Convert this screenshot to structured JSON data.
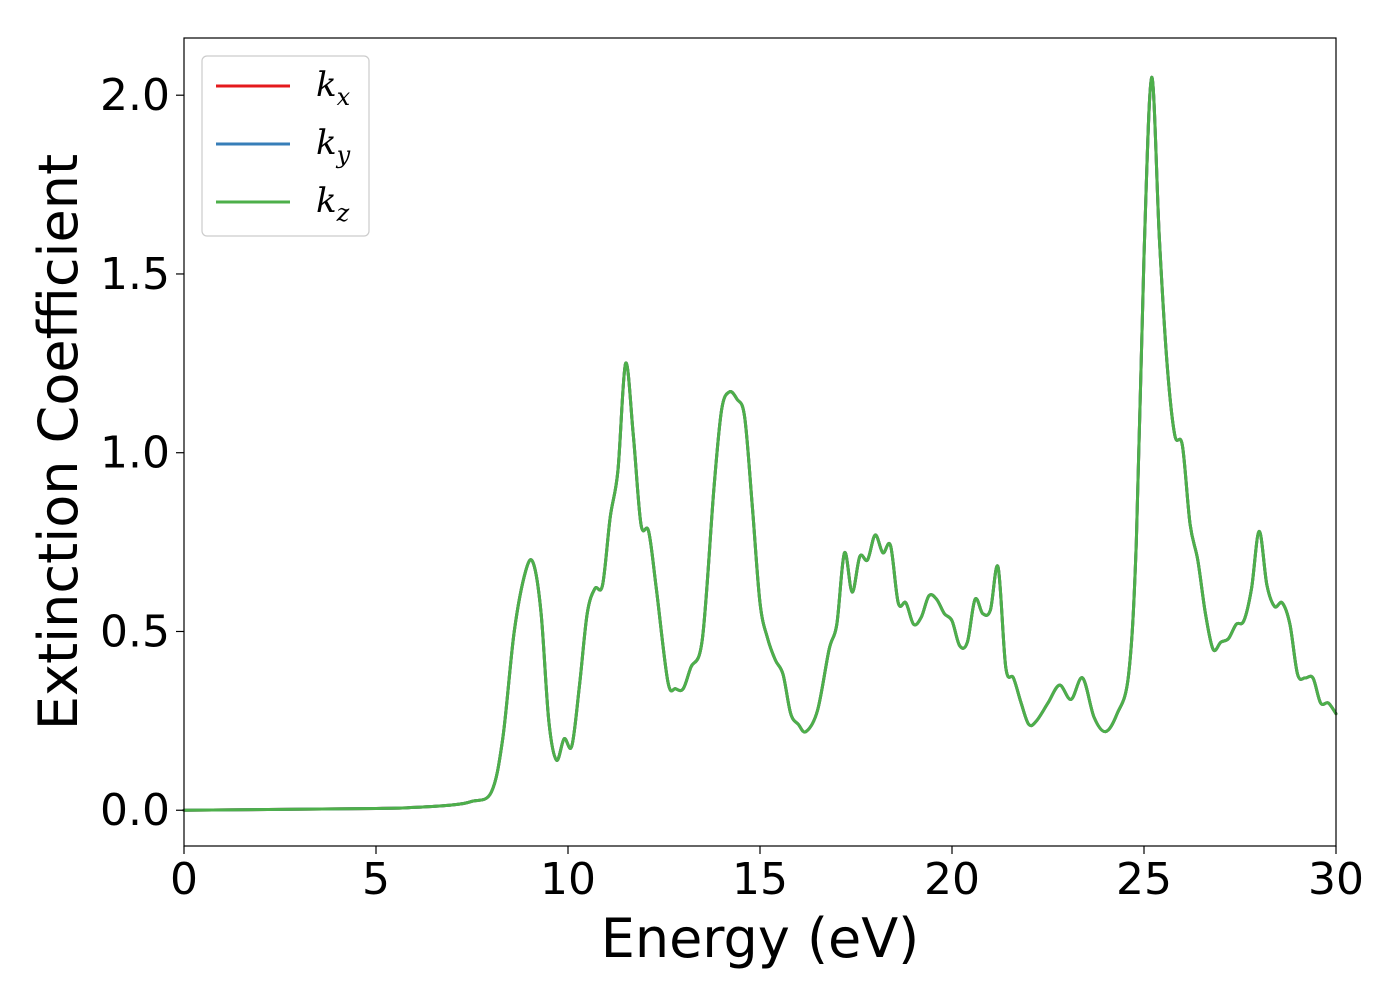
{
  "chart_data": {
    "type": "line",
    "xlabel": "Energy (eV)",
    "ylabel": "Extinction Coefficient",
    "xlim": [
      0,
      30
    ],
    "ylim": [
      -0.1,
      2.16
    ],
    "xticks": [
      0,
      5,
      10,
      15,
      20,
      25,
      30
    ],
    "xtick_labels": [
      "0",
      "5",
      "10",
      "15",
      "20",
      "25",
      "30"
    ],
    "yticks": [
      0.0,
      0.5,
      1.0,
      1.5,
      2.0
    ],
    "ytick_labels": [
      "0.0",
      "0.5",
      "1.0",
      "1.5",
      "2.0"
    ],
    "grid": false,
    "legend_position": "top-left",
    "series": [
      {
        "name": "k",
        "subscript": "x",
        "color": "#e41a1c",
        "x": [
          0,
          5,
          6,
          7,
          7.5,
          8,
          8.3,
          8.6,
          8.9,
          9.1,
          9.3,
          9.5,
          9.7,
          9.9,
          10.1,
          10.3,
          10.5,
          10.7,
          10.9,
          11.1,
          11.3,
          11.5,
          11.7,
          11.9,
          12.1,
          12.3,
          12.6,
          12.8,
          13.0,
          13.2,
          13.5,
          13.8,
          14.0,
          14.2,
          14.4,
          14.6,
          14.8,
          15.0,
          15.2,
          15.4,
          15.6,
          15.8,
          16.0,
          16.2,
          16.5,
          16.8,
          17.0,
          17.2,
          17.4,
          17.6,
          17.8,
          18.0,
          18.2,
          18.4,
          18.6,
          18.8,
          19.0,
          19.2,
          19.4,
          19.6,
          19.8,
          20.0,
          20.2,
          20.4,
          20.6,
          20.8,
          21.0,
          21.2,
          21.4,
          21.6,
          21.8,
          22.0,
          22.2,
          22.5,
          22.8,
          23.1,
          23.4,
          23.7,
          24.0,
          24.3,
          24.6,
          24.8,
          25.0,
          25.2,
          25.4,
          25.6,
          25.8,
          26.0,
          26.2,
          26.4,
          26.6,
          26.8,
          27.0,
          27.2,
          27.4,
          27.6,
          27.8,
          28.0,
          28.2,
          28.4,
          28.6,
          28.8,
          29.0,
          29.2,
          29.4,
          29.6,
          29.8,
          30.0
        ],
        "y": [
          0.0,
          0.005,
          0.008,
          0.015,
          0.025,
          0.05,
          0.2,
          0.5,
          0.67,
          0.69,
          0.55,
          0.25,
          0.14,
          0.2,
          0.18,
          0.35,
          0.55,
          0.62,
          0.63,
          0.82,
          0.95,
          1.25,
          1.05,
          0.8,
          0.78,
          0.62,
          0.36,
          0.34,
          0.34,
          0.4,
          0.48,
          0.9,
          1.12,
          1.17,
          1.15,
          1.1,
          0.85,
          0.58,
          0.48,
          0.42,
          0.38,
          0.27,
          0.24,
          0.22,
          0.28,
          0.45,
          0.52,
          0.72,
          0.61,
          0.71,
          0.7,
          0.77,
          0.72,
          0.74,
          0.58,
          0.58,
          0.52,
          0.54,
          0.6,
          0.59,
          0.55,
          0.53,
          0.46,
          0.47,
          0.59,
          0.55,
          0.56,
          0.68,
          0.4,
          0.37,
          0.3,
          0.24,
          0.25,
          0.3,
          0.35,
          0.31,
          0.37,
          0.26,
          0.22,
          0.27,
          0.38,
          0.75,
          1.55,
          2.05,
          1.6,
          1.25,
          1.05,
          1.02,
          0.8,
          0.7,
          0.55,
          0.45,
          0.47,
          0.48,
          0.52,
          0.53,
          0.62,
          0.78,
          0.63,
          0.57,
          0.58,
          0.52,
          0.38,
          0.37,
          0.37,
          0.3,
          0.3,
          0.27
        ]
      },
      {
        "name": "k",
        "subscript": "y",
        "color": "#377eb8",
        "x": [
          0,
          5,
          6,
          7,
          7.5,
          8,
          8.3,
          8.6,
          8.9,
          9.1,
          9.3,
          9.5,
          9.7,
          9.9,
          10.1,
          10.3,
          10.5,
          10.7,
          10.9,
          11.1,
          11.3,
          11.5,
          11.7,
          11.9,
          12.1,
          12.3,
          12.6,
          12.8,
          13.0,
          13.2,
          13.5,
          13.8,
          14.0,
          14.2,
          14.4,
          14.6,
          14.8,
          15.0,
          15.2,
          15.4,
          15.6,
          15.8,
          16.0,
          16.2,
          16.5,
          16.8,
          17.0,
          17.2,
          17.4,
          17.6,
          17.8,
          18.0,
          18.2,
          18.4,
          18.6,
          18.8,
          19.0,
          19.2,
          19.4,
          19.6,
          19.8,
          20.0,
          20.2,
          20.4,
          20.6,
          20.8,
          21.0,
          21.2,
          21.4,
          21.6,
          21.8,
          22.0,
          22.2,
          22.5,
          22.8,
          23.1,
          23.4,
          23.7,
          24.0,
          24.3,
          24.6,
          24.8,
          25.0,
          25.2,
          25.4,
          25.6,
          25.8,
          26.0,
          26.2,
          26.4,
          26.6,
          26.8,
          27.0,
          27.2,
          27.4,
          27.6,
          27.8,
          28.0,
          28.2,
          28.4,
          28.6,
          28.8,
          29.0,
          29.2,
          29.4,
          29.6,
          29.8,
          30.0
        ],
        "y": [
          0.0,
          0.005,
          0.008,
          0.015,
          0.025,
          0.05,
          0.2,
          0.5,
          0.67,
          0.69,
          0.55,
          0.25,
          0.14,
          0.2,
          0.18,
          0.35,
          0.55,
          0.62,
          0.63,
          0.82,
          0.95,
          1.25,
          1.05,
          0.8,
          0.78,
          0.62,
          0.36,
          0.34,
          0.34,
          0.4,
          0.48,
          0.9,
          1.12,
          1.17,
          1.15,
          1.1,
          0.85,
          0.58,
          0.48,
          0.42,
          0.38,
          0.27,
          0.24,
          0.22,
          0.28,
          0.45,
          0.52,
          0.72,
          0.61,
          0.71,
          0.7,
          0.77,
          0.72,
          0.74,
          0.58,
          0.58,
          0.52,
          0.54,
          0.6,
          0.59,
          0.55,
          0.53,
          0.46,
          0.47,
          0.59,
          0.55,
          0.56,
          0.68,
          0.4,
          0.37,
          0.3,
          0.24,
          0.25,
          0.3,
          0.35,
          0.31,
          0.37,
          0.26,
          0.22,
          0.27,
          0.38,
          0.75,
          1.55,
          2.05,
          1.6,
          1.25,
          1.05,
          1.02,
          0.8,
          0.7,
          0.55,
          0.45,
          0.47,
          0.48,
          0.52,
          0.53,
          0.62,
          0.78,
          0.63,
          0.57,
          0.58,
          0.52,
          0.38,
          0.37,
          0.37,
          0.3,
          0.3,
          0.27
        ]
      },
      {
        "name": "k",
        "subscript": "z",
        "color": "#4daf4a",
        "x": [
          0,
          5,
          6,
          7,
          7.5,
          8,
          8.3,
          8.6,
          8.9,
          9.1,
          9.3,
          9.5,
          9.7,
          9.9,
          10.1,
          10.3,
          10.5,
          10.7,
          10.9,
          11.1,
          11.3,
          11.5,
          11.7,
          11.9,
          12.1,
          12.3,
          12.6,
          12.8,
          13.0,
          13.2,
          13.5,
          13.8,
          14.0,
          14.2,
          14.4,
          14.6,
          14.8,
          15.0,
          15.2,
          15.4,
          15.6,
          15.8,
          16.0,
          16.2,
          16.5,
          16.8,
          17.0,
          17.2,
          17.4,
          17.6,
          17.8,
          18.0,
          18.2,
          18.4,
          18.6,
          18.8,
          19.0,
          19.2,
          19.4,
          19.6,
          19.8,
          20.0,
          20.2,
          20.4,
          20.6,
          20.8,
          21.0,
          21.2,
          21.4,
          21.6,
          21.8,
          22.0,
          22.2,
          22.5,
          22.8,
          23.1,
          23.4,
          23.7,
          24.0,
          24.3,
          24.6,
          24.8,
          25.0,
          25.2,
          25.4,
          25.6,
          25.8,
          26.0,
          26.2,
          26.4,
          26.6,
          26.8,
          27.0,
          27.2,
          27.4,
          27.6,
          27.8,
          28.0,
          28.2,
          28.4,
          28.6,
          28.8,
          29.0,
          29.2,
          29.4,
          29.6,
          29.8,
          30.0
        ],
        "y": [
          0.0,
          0.005,
          0.008,
          0.015,
          0.025,
          0.05,
          0.2,
          0.5,
          0.67,
          0.69,
          0.55,
          0.25,
          0.14,
          0.2,
          0.18,
          0.35,
          0.55,
          0.62,
          0.63,
          0.82,
          0.95,
          1.25,
          1.05,
          0.8,
          0.78,
          0.62,
          0.36,
          0.34,
          0.34,
          0.4,
          0.48,
          0.9,
          1.12,
          1.17,
          1.15,
          1.1,
          0.85,
          0.58,
          0.48,
          0.42,
          0.38,
          0.27,
          0.24,
          0.22,
          0.28,
          0.45,
          0.52,
          0.72,
          0.61,
          0.71,
          0.7,
          0.77,
          0.72,
          0.74,
          0.58,
          0.58,
          0.52,
          0.54,
          0.6,
          0.59,
          0.55,
          0.53,
          0.46,
          0.47,
          0.59,
          0.55,
          0.56,
          0.68,
          0.4,
          0.37,
          0.3,
          0.24,
          0.25,
          0.3,
          0.35,
          0.31,
          0.37,
          0.26,
          0.22,
          0.27,
          0.38,
          0.75,
          1.55,
          2.05,
          1.6,
          1.25,
          1.05,
          1.02,
          0.8,
          0.7,
          0.55,
          0.45,
          0.47,
          0.48,
          0.52,
          0.53,
          0.62,
          0.78,
          0.63,
          0.57,
          0.58,
          0.52,
          0.38,
          0.37,
          0.37,
          0.3,
          0.3,
          0.27
        ]
      }
    ]
  }
}
